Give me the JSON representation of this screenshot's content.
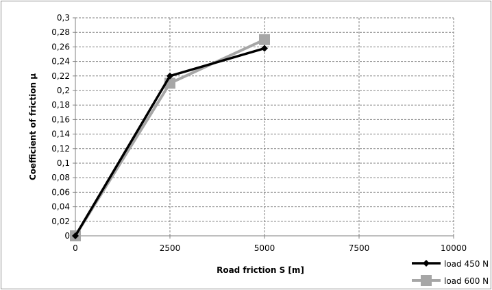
{
  "chart_data": {
    "type": "line",
    "xlabel": "Road friction S [m]",
    "ylabel": "Coefficient of friction μ",
    "xlim": [
      0,
      10000
    ],
    "ylim": [
      0,
      0.3
    ],
    "x_ticks": [
      "0",
      "2500",
      "5000",
      "7500",
      "10000"
    ],
    "y_ticks": [
      "0",
      "0,02",
      "0,04",
      "0,06",
      "0,08",
      "0,1",
      "0,12",
      "0,14",
      "0,16",
      "0,18",
      "0,2",
      "0,22",
      "0,24",
      "0,26",
      "0,28",
      "0,3"
    ],
    "grid": true,
    "legend_position": "bottom-right",
    "series": [
      {
        "name": "load 450 N",
        "color": "#000000",
        "marker": "diamond",
        "x": [
          0,
          2500,
          5000
        ],
        "y": [
          0,
          0.22,
          0.258
        ]
      },
      {
        "name": "load 600 N",
        "color": "#a6a6a6",
        "marker": "square",
        "x": [
          0,
          2500,
          5000
        ],
        "y": [
          0,
          0.21,
          0.27
        ]
      }
    ]
  }
}
